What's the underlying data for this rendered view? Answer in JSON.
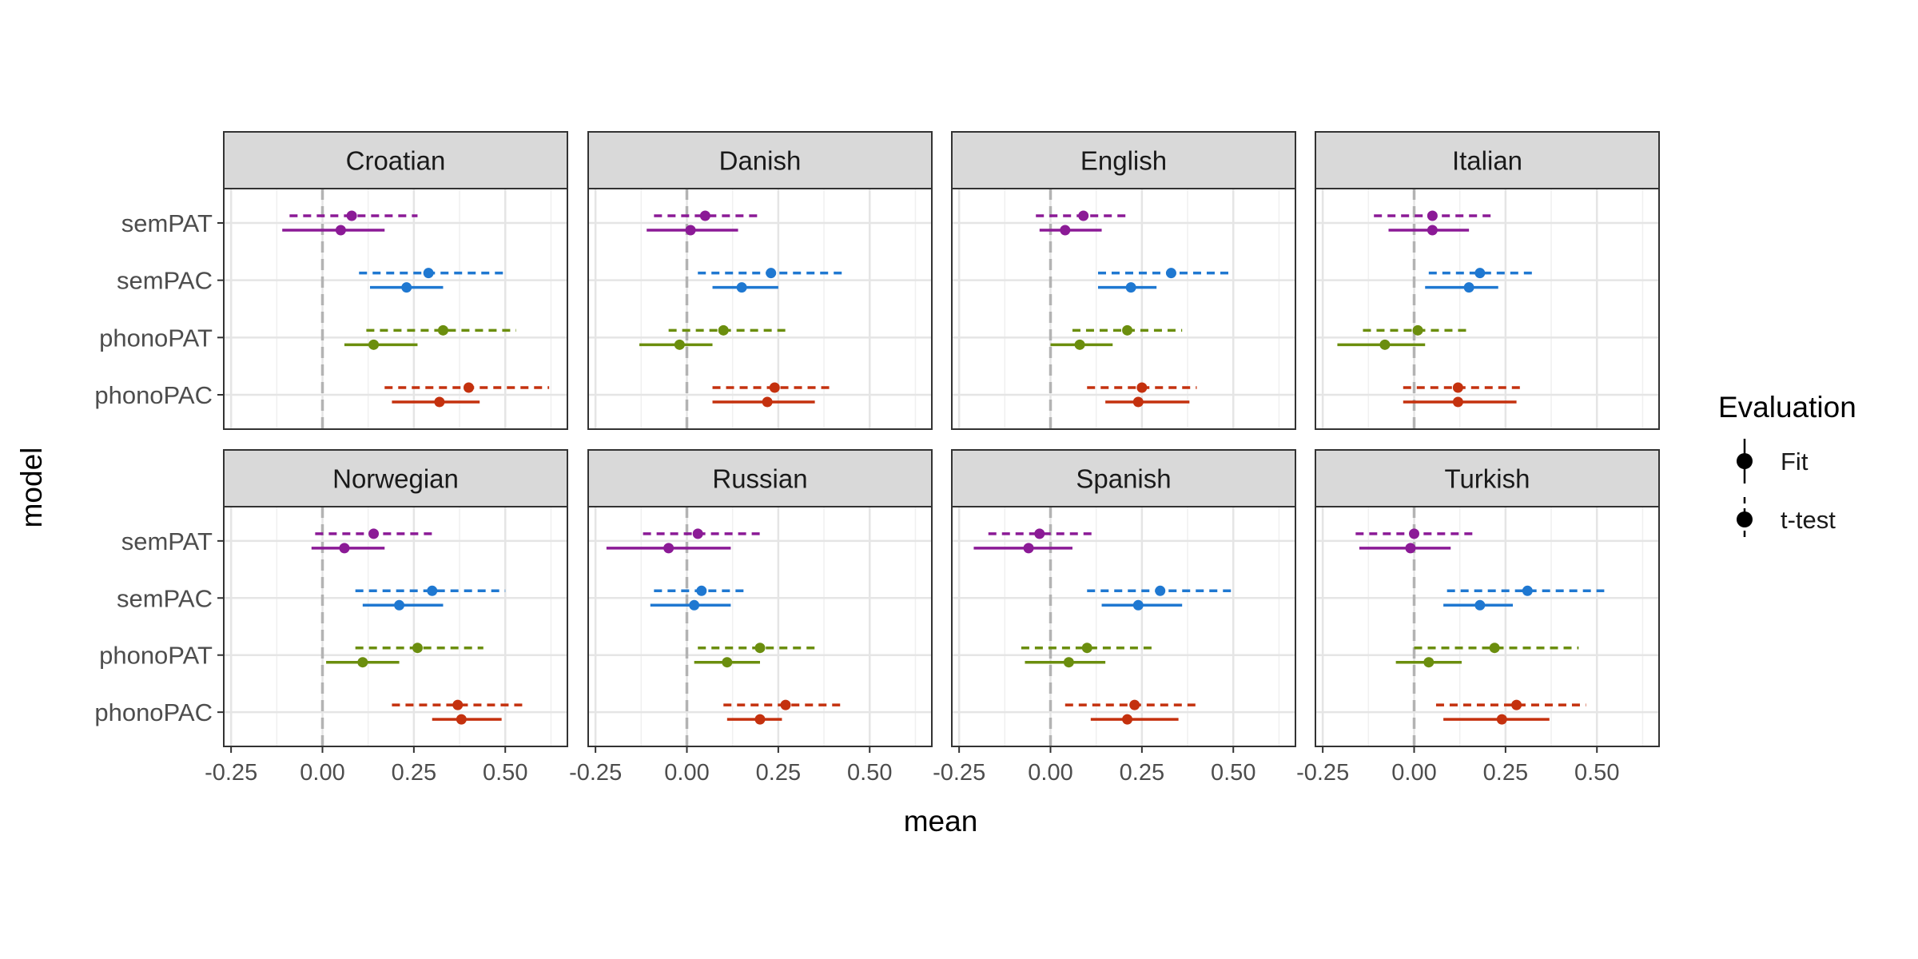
{
  "chart_data": {
    "type": "forest",
    "facet_by": "language",
    "x_label": "mean",
    "y_label": "model",
    "x_range": [
      -0.27,
      0.67
    ],
    "x_ticks": [
      -0.25,
      0.0,
      0.25,
      0.5
    ],
    "x_tick_labels": [
      "-0.25",
      "0.00",
      "0.25",
      "0.50"
    ],
    "reference_line": 0.0,
    "grid": true,
    "models": [
      "semPAT",
      "semPAC",
      "phonoPAT",
      "phonoPAC"
    ],
    "model_colors": {
      "semPAT": "#8B1A96",
      "semPAC": "#1F78D1",
      "phonoPAT": "#6B8E0E",
      "phonoPAC": "#C4310E"
    },
    "legend": {
      "title": "Evaluation",
      "position": "right",
      "items": [
        {
          "label": "Fit",
          "linetype": "solid"
        },
        {
          "label": "t-test",
          "linetype": "dashed"
        }
      ]
    },
    "panels": [
      {
        "title": "Croatian",
        "series": {
          "semPAT": {
            "ttest": {
              "mean": 0.08,
              "low": -0.09,
              "high": 0.26
            },
            "fit": {
              "mean": 0.05,
              "low": -0.11,
              "high": 0.17
            }
          },
          "semPAC": {
            "ttest": {
              "mean": 0.29,
              "low": 0.1,
              "high": 0.5
            },
            "fit": {
              "mean": 0.23,
              "low": 0.13,
              "high": 0.33
            }
          },
          "phonoPAT": {
            "ttest": {
              "mean": 0.33,
              "low": 0.12,
              "high": 0.53
            },
            "fit": {
              "mean": 0.14,
              "low": 0.06,
              "high": 0.26
            }
          },
          "phonoPAC": {
            "ttest": {
              "mean": 0.4,
              "low": 0.17,
              "high": 0.62
            },
            "fit": {
              "mean": 0.32,
              "low": 0.19,
              "high": 0.43
            }
          }
        }
      },
      {
        "title": "Danish",
        "series": {
          "semPAT": {
            "ttest": {
              "mean": 0.05,
              "low": -0.09,
              "high": 0.2
            },
            "fit": {
              "mean": 0.01,
              "low": -0.11,
              "high": 0.14
            }
          },
          "semPAC": {
            "ttest": {
              "mean": 0.23,
              "low": 0.03,
              "high": 0.43
            },
            "fit": {
              "mean": 0.15,
              "low": 0.07,
              "high": 0.25
            }
          },
          "phonoPAT": {
            "ttest": {
              "mean": 0.1,
              "low": -0.05,
              "high": 0.27
            },
            "fit": {
              "mean": -0.02,
              "low": -0.13,
              "high": 0.07
            }
          },
          "phonoPAC": {
            "ttest": {
              "mean": 0.24,
              "low": 0.07,
              "high": 0.4
            },
            "fit": {
              "mean": 0.22,
              "low": 0.07,
              "high": 0.35
            }
          }
        }
      },
      {
        "title": "English",
        "series": {
          "semPAT": {
            "ttest": {
              "mean": 0.09,
              "low": -0.04,
              "high": 0.21
            },
            "fit": {
              "mean": 0.04,
              "low": -0.03,
              "high": 0.14
            }
          },
          "semPAC": {
            "ttest": {
              "mean": 0.33,
              "low": 0.13,
              "high": 0.5
            },
            "fit": {
              "mean": 0.22,
              "low": 0.13,
              "high": 0.29
            }
          },
          "phonoPAT": {
            "ttest": {
              "mean": 0.21,
              "low": 0.06,
              "high": 0.36
            },
            "fit": {
              "mean": 0.08,
              "low": 0.0,
              "high": 0.17
            }
          },
          "phonoPAC": {
            "ttest": {
              "mean": 0.25,
              "low": 0.1,
              "high": 0.4
            },
            "fit": {
              "mean": 0.24,
              "low": 0.15,
              "high": 0.38
            }
          }
        }
      },
      {
        "title": "Italian",
        "series": {
          "semPAT": {
            "ttest": {
              "mean": 0.05,
              "low": -0.11,
              "high": 0.21
            },
            "fit": {
              "mean": 0.05,
              "low": -0.07,
              "high": 0.15
            }
          },
          "semPAC": {
            "ttest": {
              "mean": 0.18,
              "low": 0.04,
              "high": 0.33
            },
            "fit": {
              "mean": 0.15,
              "low": 0.03,
              "high": 0.23
            }
          },
          "phonoPAT": {
            "ttest": {
              "mean": 0.01,
              "low": -0.14,
              "high": 0.15
            },
            "fit": {
              "mean": -0.08,
              "low": -0.21,
              "high": 0.03
            }
          },
          "phonoPAC": {
            "ttest": {
              "mean": 0.12,
              "low": -0.03,
              "high": 0.3
            },
            "fit": {
              "mean": 0.12,
              "low": -0.03,
              "high": 0.28
            }
          }
        }
      },
      {
        "title": "Norwegian",
        "series": {
          "semPAT": {
            "ttest": {
              "mean": 0.14,
              "low": -0.02,
              "high": 0.3
            },
            "fit": {
              "mean": 0.06,
              "low": -0.03,
              "high": 0.17
            }
          },
          "semPAC": {
            "ttest": {
              "mean": 0.3,
              "low": 0.09,
              "high": 0.5
            },
            "fit": {
              "mean": 0.21,
              "low": 0.11,
              "high": 0.33
            }
          },
          "phonoPAT": {
            "ttest": {
              "mean": 0.26,
              "low": 0.09,
              "high": 0.44
            },
            "fit": {
              "mean": 0.11,
              "low": 0.01,
              "high": 0.21
            }
          },
          "phonoPAC": {
            "ttest": {
              "mean": 0.37,
              "low": 0.19,
              "high": 0.55
            },
            "fit": {
              "mean": 0.38,
              "low": 0.3,
              "high": 0.49
            }
          }
        }
      },
      {
        "title": "Russian",
        "series": {
          "semPAT": {
            "ttest": {
              "mean": 0.03,
              "low": -0.12,
              "high": 0.2
            },
            "fit": {
              "mean": -0.05,
              "low": -0.22,
              "high": 0.12
            }
          },
          "semPAC": {
            "ttest": {
              "mean": 0.04,
              "low": -0.09,
              "high": 0.16
            },
            "fit": {
              "mean": 0.02,
              "low": -0.1,
              "high": 0.12
            }
          },
          "phonoPAT": {
            "ttest": {
              "mean": 0.2,
              "low": 0.03,
              "high": 0.36
            },
            "fit": {
              "mean": 0.11,
              "low": 0.02,
              "high": 0.2
            }
          },
          "phonoPAC": {
            "ttest": {
              "mean": 0.27,
              "low": 0.1,
              "high": 0.43
            },
            "fit": {
              "mean": 0.2,
              "low": 0.11,
              "high": 0.26
            }
          }
        }
      },
      {
        "title": "Spanish",
        "series": {
          "semPAT": {
            "ttest": {
              "mean": -0.03,
              "low": -0.17,
              "high": 0.12
            },
            "fit": {
              "mean": -0.06,
              "low": -0.21,
              "high": 0.06
            }
          },
          "semPAC": {
            "ttest": {
              "mean": 0.3,
              "low": 0.1,
              "high": 0.5
            },
            "fit": {
              "mean": 0.24,
              "low": 0.14,
              "high": 0.36
            }
          },
          "phonoPAT": {
            "ttest": {
              "mean": 0.1,
              "low": -0.08,
              "high": 0.28
            },
            "fit": {
              "mean": 0.05,
              "low": -0.07,
              "high": 0.15
            }
          },
          "phonoPAC": {
            "ttest": {
              "mean": 0.23,
              "low": 0.04,
              "high": 0.41
            },
            "fit": {
              "mean": 0.21,
              "low": 0.11,
              "high": 0.35
            }
          }
        }
      },
      {
        "title": "Turkish",
        "series": {
          "semPAT": {
            "ttest": {
              "mean": 0.0,
              "low": -0.16,
              "high": 0.16
            },
            "fit": {
              "mean": -0.01,
              "low": -0.15,
              "high": 0.1
            }
          },
          "semPAC": {
            "ttest": {
              "mean": 0.31,
              "low": 0.09,
              "high": 0.52
            },
            "fit": {
              "mean": 0.18,
              "low": 0.08,
              "high": 0.27
            }
          },
          "phonoPAT": {
            "ttest": {
              "mean": 0.22,
              "low": 0.0,
              "high": 0.45
            },
            "fit": {
              "mean": 0.04,
              "low": -0.05,
              "high": 0.13
            }
          },
          "phonoPAC": {
            "ttest": {
              "mean": 0.28,
              "low": 0.06,
              "high": 0.47
            },
            "fit": {
              "mean": 0.24,
              "low": 0.08,
              "high": 0.37
            }
          }
        }
      }
    ]
  }
}
